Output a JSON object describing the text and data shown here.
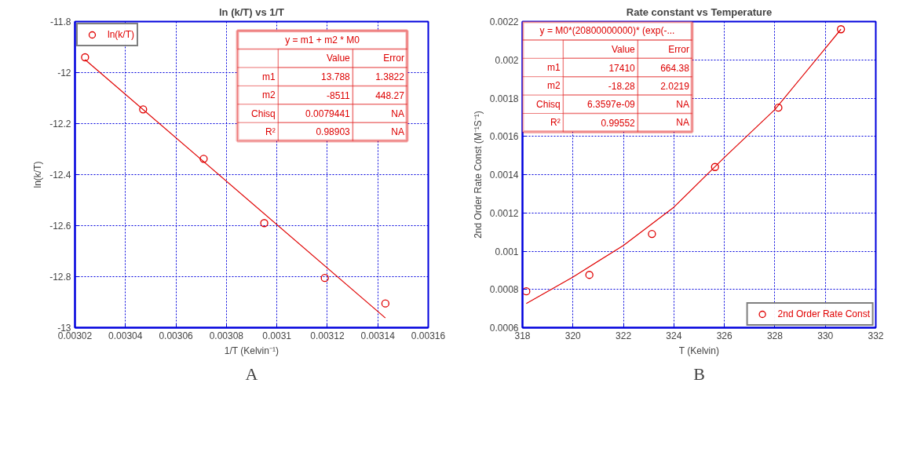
{
  "chart_data": [
    {
      "type": "scatter",
      "title": "ln (k/T) vs 1/T",
      "xlabel": "1/T (Kelvin⁻¹)",
      "ylabel": "ln(k/T)",
      "series": [
        {
          "name": "ln(k/T)",
          "color": "#e00000",
          "x": [
            0.003024,
            0.003047,
            0.003071,
            0.003095,
            0.003119,
            0.003143
          ],
          "values": [
            -11.94,
            -12.144,
            -12.338,
            -12.59,
            -12.805,
            -12.905
          ]
        },
        {
          "type": "line",
          "marker": "none",
          "color": "#e00000",
          "x": [
            0.003024,
            0.003143
          ],
          "values": [
            -11.949,
            -12.962
          ]
        }
      ],
      "xlim": [
        0.00302,
        0.00316
      ],
      "xticks": [
        0.00302,
        0.00304,
        0.00306,
        0.00308,
        0.0031,
        0.00312,
        0.00314,
        0.00316
      ],
      "ylim": [
        -13,
        -11.8
      ],
      "yticks": [
        -13,
        -12.8,
        -12.6,
        -12.4,
        -12.2,
        -12,
        -11.8
      ],
      "grid": true,
      "legend": "top left",
      "marker": "circle",
      "line_style": "solid",
      "annotations": [
        "y = m1 + m2 * M0",
        "Value",
        "Error",
        "m1",
        "13.788",
        "1.3822",
        "m2",
        "-8511",
        "448.27",
        "Chisq",
        "0.0079441",
        "NA",
        "R²",
        "0.98903",
        "NA",
        "A"
      ]
    },
    {
      "type": "scatter",
      "title": "Rate constant vs Temperature",
      "xlabel": "T (Kelvin)",
      "ylabel": "2nd Order Rate Const (M⁻¹S⁻¹)",
      "series": [
        {
          "name": "2nd Order Rate Const",
          "color": "#e00000",
          "x": [
            318.15,
            320.65,
            323.13,
            325.63,
            328.14,
            330.62
          ],
          "values": [
            0.00079,
            0.000876,
            0.00109,
            0.00144,
            0.00175,
            0.00216
          ]
        },
        {
          "type": "line",
          "marker": "none",
          "color": "#e00000",
          "x": [
            318.15,
            320,
            322,
            324,
            326,
            328,
            330,
            330.62
          ],
          "values": [
            0.000726,
            0.000865,
            0.00103,
            0.00123,
            0.00149,
            0.00174,
            0.00206,
            0.00216
          ]
        }
      ],
      "xlim": [
        318,
        332
      ],
      "xticks": [
        318,
        320,
        322,
        324,
        326,
        328,
        330,
        332
      ],
      "ylim": [
        0.0006,
        0.0022
      ],
      "yticks": [
        0.0006,
        0.0008,
        0.001,
        0.0012,
        0.0014,
        0.0016,
        0.0018,
        0.002,
        0.0022
      ],
      "grid": true,
      "legend": "bottom right",
      "marker": "circle",
      "line_style": "solid",
      "annotations": [
        "y = M0*(20800000000)* (exp(-...",
        "Value",
        "Error",
        "m1",
        "17410",
        "664.38",
        "m2",
        "-18.28",
        "2.0219",
        "Chisq",
        "6.3597e-09",
        "NA",
        "R²",
        "0.99552",
        "NA",
        "B"
      ]
    }
  ]
}
